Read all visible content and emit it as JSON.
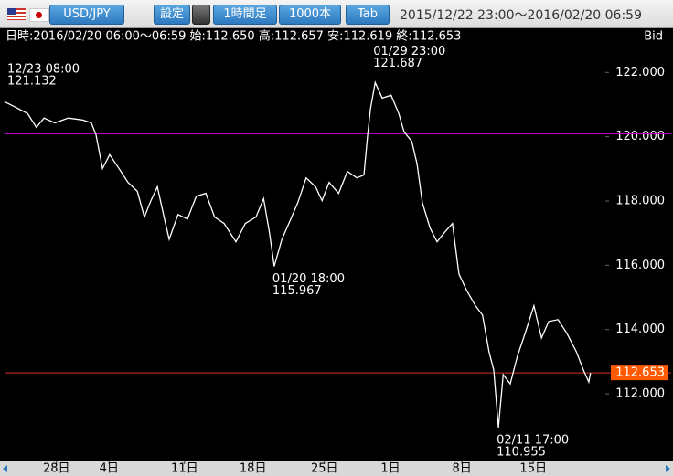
{
  "toolbar": {
    "pair": "USD/JPY",
    "settings_button": "設定",
    "timeframe_button": "1時間足",
    "bars_button": "1000本",
    "tab_button": "Tab",
    "range": "2015/12/22 23:00～2016/02/20 06:59"
  },
  "info": {
    "text": "日時:2016/02/20 06:00～06:59 始:112.650 高:112.657 安:112.619 終:112.653",
    "side": "Bid"
  },
  "chart_data": {
    "type": "line",
    "color": "#ffffff",
    "background": "#000000",
    "x": [
      0,
      15,
      39,
      54,
      67,
      85,
      108,
      132,
      147,
      155,
      166,
      178,
      194,
      209,
      225,
      237,
      248,
      259,
      271,
      279,
      294,
      310,
      325,
      341,
      356,
      372,
      392,
      408,
      426,
      439,
      449,
      457,
      470,
      485,
      497,
      511,
      527,
      538,
      550,
      566,
      581,
      597,
      609,
      615,
      620,
      628,
      640,
      655,
      668,
      677,
      690,
      699,
      708,
      721,
      733,
      745,
      759,
      770,
      783,
      798,
      810,
      821,
      829,
      837,
      845,
      857,
      869,
      882,
      897,
      910,
      922,
      938,
      953,
      969,
      981,
      990,
      993
    ],
    "values": [
      121.09,
      120.95,
      120.72,
      120.29,
      120.58,
      120.43,
      120.58,
      120.52,
      120.43,
      120.06,
      119.01,
      119.44,
      119.01,
      118.58,
      118.3,
      117.5,
      118.01,
      118.44,
      117.44,
      116.81,
      117.58,
      117.44,
      118.15,
      118.24,
      117.5,
      117.3,
      116.73,
      117.3,
      117.5,
      118.07,
      117.01,
      115.967,
      116.81,
      117.44,
      117.95,
      118.72,
      118.44,
      118.01,
      118.58,
      118.24,
      118.92,
      118.72,
      118.81,
      120.01,
      120.86,
      121.687,
      121.2,
      121.29,
      120.72,
      120.15,
      119.86,
      119.15,
      117.95,
      117.16,
      116.73,
      117.01,
      117.3,
      115.73,
      115.22,
      114.74,
      114.45,
      113.31,
      112.74,
      110.955,
      112.6,
      112.31,
      113.17,
      113.88,
      114.74,
      113.74,
      114.25,
      114.31,
      113.88,
      113.31,
      112.74,
      112.37,
      112.653
    ],
    "xlim": [
      0,
      1015
    ],
    "ylim": [
      109.9,
      123.4
    ],
    "xticks": [
      {
        "value": 88,
        "label": "28日"
      },
      {
        "value": 177,
        "label": "4日"
      },
      {
        "value": 305,
        "label": "11日"
      },
      {
        "value": 421,
        "label": "18日"
      },
      {
        "value": 542,
        "label": "25日"
      },
      {
        "value": 654,
        "label": "1日"
      },
      {
        "value": 775,
        "label": "8日"
      },
      {
        "value": 896,
        "label": "15日"
      }
    ],
    "yticks": [
      {
        "value": 112,
        "label": "112.000"
      },
      {
        "value": 114,
        "label": "114.000"
      },
      {
        "value": 116,
        "label": "116.000"
      },
      {
        "value": 118,
        "label": "118.000"
      },
      {
        "value": 120,
        "label": "120.000"
      },
      {
        "value": 122,
        "label": "122.000"
      }
    ],
    "hlines": [
      {
        "value": 120.09,
        "color": "#c000c0"
      },
      {
        "value": 112.653,
        "color": "#d03030",
        "label_color": "#ff5a00"
      }
    ],
    "annotations": [
      {
        "x": 2,
        "time": "12/23 08:00",
        "price": 121.132
      },
      {
        "x": 628,
        "time": "01/29 23:00",
        "price": 121.687
      },
      {
        "x": 457,
        "time": "01/20 18:00",
        "price": 115.967
      },
      {
        "x": 837,
        "time": "02/11 17:00",
        "price": 110.955
      }
    ]
  }
}
